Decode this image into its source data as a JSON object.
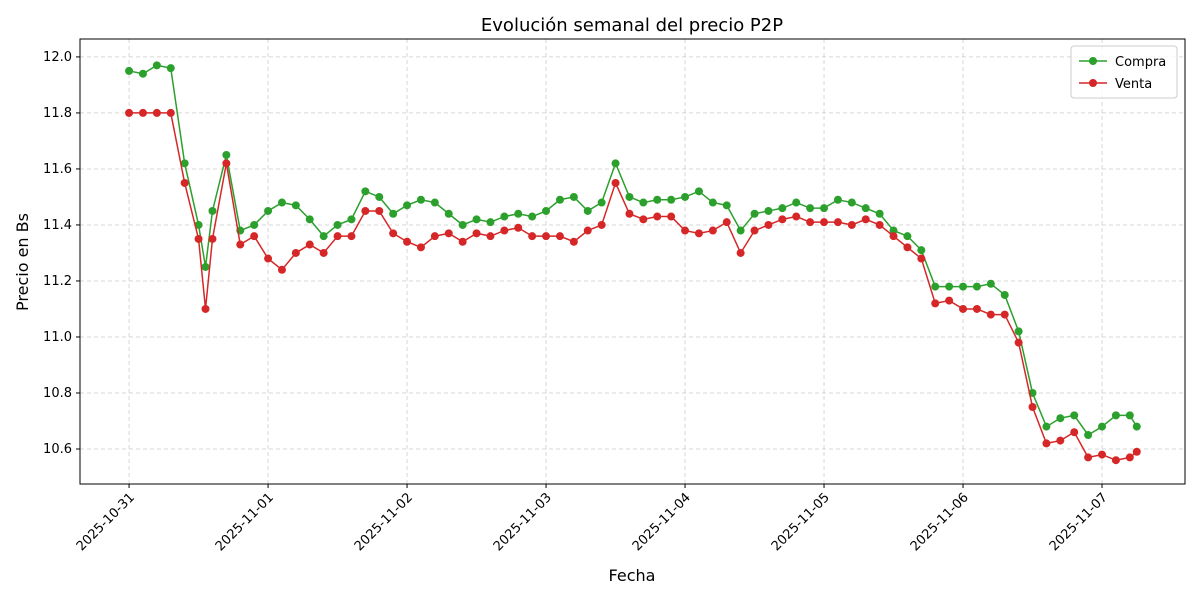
{
  "chart_data": {
    "type": "line",
    "title": "Evolución semanal del precio P2P",
    "xlabel": "Fecha",
    "ylabel": "Precio en Bs",
    "x": [
      0,
      0.1,
      0.2,
      0.3,
      0.4,
      0.5,
      0.55,
      0.6,
      0.7,
      0.8,
      0.9,
      1.0,
      1.1,
      1.2,
      1.3,
      1.4,
      1.5,
      1.6,
      1.7,
      1.8,
      1.9,
      2.0,
      2.1,
      2.2,
      2.3,
      2.4,
      2.5,
      2.6,
      2.7,
      2.8,
      2.9,
      3.0,
      3.1,
      3.2,
      3.3,
      3.4,
      3.5,
      3.6,
      3.7,
      3.8,
      3.9,
      4.0,
      4.1,
      4.2,
      4.3,
      4.4,
      4.5,
      4.6,
      4.7,
      4.8,
      4.9,
      5.0,
      5.1,
      5.2,
      5.3,
      5.4,
      5.5,
      5.6,
      5.7,
      5.8,
      5.9,
      6.0,
      6.1,
      6.2,
      6.3,
      6.4,
      6.5,
      6.6,
      6.7,
      6.8,
      6.9,
      7.0,
      7.1,
      7.2,
      7.25
    ],
    "series": [
      {
        "name": "Compra",
        "color": "#2ca02c",
        "values": [
          11.95,
          11.94,
          11.97,
          11.96,
          11.62,
          11.4,
          11.25,
          11.45,
          11.65,
          11.38,
          11.4,
          11.45,
          11.48,
          11.47,
          11.42,
          11.36,
          11.4,
          11.42,
          11.52,
          11.5,
          11.44,
          11.47,
          11.49,
          11.48,
          11.44,
          11.4,
          11.42,
          11.41,
          11.43,
          11.44,
          11.43,
          11.45,
          11.49,
          11.5,
          11.45,
          11.48,
          11.62,
          11.5,
          11.48,
          11.49,
          11.49,
          11.5,
          11.52,
          11.48,
          11.47,
          11.38,
          11.44,
          11.45,
          11.46,
          11.48,
          11.46,
          11.46,
          11.49,
          11.48,
          11.46,
          11.44,
          11.38,
          11.36,
          11.31,
          11.18,
          11.18,
          11.18,
          11.18,
          11.19,
          11.15,
          11.02,
          10.8,
          10.68,
          10.71,
          10.72,
          10.65,
          10.68,
          10.72,
          10.72,
          10.68
        ]
      },
      {
        "name": "Venta",
        "color": "#d62728",
        "values": [
          11.8,
          11.8,
          11.8,
          11.8,
          11.55,
          11.35,
          11.1,
          11.35,
          11.62,
          11.33,
          11.36,
          11.28,
          11.24,
          11.3,
          11.33,
          11.3,
          11.36,
          11.36,
          11.45,
          11.45,
          11.37,
          11.34,
          11.32,
          11.36,
          11.37,
          11.34,
          11.37,
          11.36,
          11.38,
          11.39,
          11.36,
          11.36,
          11.36,
          11.34,
          11.38,
          11.4,
          11.55,
          11.44,
          11.42,
          11.43,
          11.43,
          11.38,
          11.37,
          11.38,
          11.41,
          11.3,
          11.38,
          11.4,
          11.42,
          11.43,
          11.41,
          11.41,
          11.41,
          11.4,
          11.42,
          11.4,
          11.36,
          11.32,
          11.28,
          11.12,
          11.13,
          11.1,
          11.1,
          11.08,
          11.08,
          10.98,
          10.75,
          10.62,
          10.63,
          10.66,
          10.57,
          10.58,
          10.56,
          10.57,
          10.59
        ]
      }
    ],
    "xlim": [
      -0.353,
      7.597
    ],
    "xticks": [
      {
        "value": 0,
        "label": "2025-10-31"
      },
      {
        "value": 1,
        "label": "2025-11-01"
      },
      {
        "value": 2,
        "label": "2025-11-02"
      },
      {
        "value": 3,
        "label": "2025-11-03"
      },
      {
        "value": 4,
        "label": "2025-11-04"
      },
      {
        "value": 5,
        "label": "2025-11-05"
      },
      {
        "value": 6,
        "label": "2025-11-06"
      },
      {
        "value": 7,
        "label": "2025-11-07"
      }
    ],
    "ylim": [
      10.475,
      12.064
    ],
    "yticks": [
      10.6,
      10.8,
      {
        "value": 11,
        "label": "11.0"
      },
      11.2,
      11.4,
      11.6,
      11.8,
      {
        "value": 12,
        "label": "12.0"
      }
    ],
    "grid": true,
    "legend": "upper right"
  }
}
